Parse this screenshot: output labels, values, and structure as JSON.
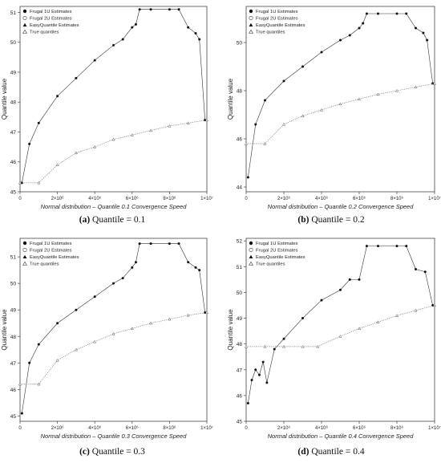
{
  "legend_entries": [
    "Frugal 1U Estimates",
    "Frugal 2U Estimates",
    "EasyQuantile Estimates",
    "True quantiles"
  ],
  "x_tick_labels": [
    "0",
    "2×10⁶",
    "4×10⁶",
    "6×10⁶",
    "8×10⁶",
    "1×10⁷"
  ],
  "captions": [
    {
      "label": "(a)",
      "text": " Quantile = 0.1"
    },
    {
      "label": "(b)",
      "text": " Quantile = 0.2"
    },
    {
      "label": "(c)",
      "text": " Quantile = 0.3"
    },
    {
      "label": "(d)",
      "text": " Quantile = 0.4"
    }
  ],
  "chart_data": [
    {
      "type": "scatter",
      "xlabel": "Normal distribution – Quantile 0.1 Convergence Speed",
      "ylabel": "Quantile value",
      "xlim": [
        0,
        10000000
      ],
      "ylim": [
        45,
        51.2
      ],
      "yticks": [
        45,
        46,
        47,
        48,
        49,
        50,
        51
      ],
      "legend_position": "top-left",
      "series": [
        {
          "name": "EasyQuantile Estimates",
          "x": [
            100000,
            500000,
            1000000,
            2000000,
            3000000,
            4000000,
            5000000,
            5500000,
            6000000,
            6200000,
            6400000,
            7000000,
            8000000,
            8500000,
            9000000,
            9400000,
            9600000,
            9900000
          ],
          "y": [
            45.3,
            46.6,
            47.3,
            48.2,
            48.8,
            49.4,
            49.9,
            50.1,
            50.5,
            50.6,
            51.1,
            51.1,
            51.1,
            51.1,
            50.5,
            50.3,
            50.1,
            47.4
          ]
        },
        {
          "name": "True quantiles",
          "x": [
            0,
            1000000,
            2000000,
            3000000,
            4000000,
            5000000,
            6000000,
            7000000,
            8000000,
            9000000,
            10000000
          ],
          "y": [
            45.3,
            45.3,
            45.9,
            46.3,
            46.5,
            46.75,
            46.9,
            47.05,
            47.2,
            47.3,
            47.4
          ]
        }
      ]
    },
    {
      "type": "scatter",
      "xlabel": "Normal distribution – Quantile 0.2 Convergence Speed",
      "ylabel": "Quantile value",
      "xlim": [
        0,
        10000000
      ],
      "ylim": [
        43.8,
        51.5
      ],
      "yticks": [
        44,
        46,
        48,
        50
      ],
      "legend_position": "top-left",
      "series": [
        {
          "name": "EasyQuantile Estimates",
          "x": [
            100000,
            500000,
            1000000,
            2000000,
            3000000,
            4000000,
            5000000,
            5500000,
            6000000,
            6200000,
            6400000,
            7000000,
            8000000,
            8500000,
            9000000,
            9400000,
            9600000,
            9900000
          ],
          "y": [
            44.4,
            46.6,
            47.6,
            48.4,
            49.0,
            49.6,
            50.1,
            50.3,
            50.6,
            50.8,
            51.2,
            51.2,
            51.2,
            51.2,
            50.6,
            50.4,
            50.1,
            48.3
          ]
        },
        {
          "name": "True quantiles",
          "x": [
            0,
            1000000,
            2000000,
            3000000,
            4000000,
            5000000,
            6000000,
            7000000,
            8000000,
            9000000,
            10000000
          ],
          "y": [
            45.8,
            45.8,
            46.6,
            46.95,
            47.2,
            47.45,
            47.65,
            47.85,
            48.0,
            48.15,
            48.3
          ]
        }
      ]
    },
    {
      "type": "scatter",
      "xlabel": "Normal distribution – Quantile 0.3 Convergence Speed",
      "ylabel": "Quantile value",
      "xlim": [
        0,
        10000000
      ],
      "ylim": [
        44.8,
        51.7
      ],
      "yticks": [
        45,
        46,
        47,
        48,
        49,
        50,
        51
      ],
      "legend_position": "top-left",
      "series": [
        {
          "name": "EasyQuantile Estimates",
          "x": [
            100000,
            500000,
            1000000,
            2000000,
            3000000,
            4000000,
            5000000,
            5500000,
            6000000,
            6200000,
            6400000,
            7000000,
            8000000,
            8500000,
            9000000,
            9400000,
            9600000,
            9900000
          ],
          "y": [
            45.1,
            47.0,
            47.7,
            48.5,
            49.0,
            49.5,
            50.0,
            50.2,
            50.6,
            50.8,
            51.5,
            51.5,
            51.5,
            51.5,
            50.8,
            50.6,
            50.5,
            48.9
          ]
        },
        {
          "name": "True quantiles",
          "x": [
            0,
            1000000,
            2000000,
            3000000,
            4000000,
            5000000,
            6000000,
            7000000,
            8000000,
            9000000,
            10000000
          ],
          "y": [
            46.2,
            46.2,
            47.1,
            47.5,
            47.8,
            48.1,
            48.3,
            48.5,
            48.65,
            48.8,
            48.9
          ]
        }
      ]
    },
    {
      "type": "scatter",
      "xlabel": "Normal distribution – Quantile 0.4 Convergence Speed",
      "ylabel": "Quantile value",
      "xlim": [
        0,
        10000000
      ],
      "ylim": [
        45,
        52.1
      ],
      "yticks": [
        45,
        46,
        47,
        48,
        49,
        50,
        51,
        52
      ],
      "legend_position": "top-left",
      "series": [
        {
          "name": "EasyQuantile Estimates",
          "x": [
            100000,
            300000,
            500000,
            700000,
            900000,
            1100000,
            1500000,
            2000000,
            3000000,
            4000000,
            5000000,
            5500000,
            6000000,
            6400000,
            7000000,
            8000000,
            8500000,
            9000000,
            9500000,
            9900000
          ],
          "y": [
            45.7,
            46.6,
            47.0,
            46.8,
            47.3,
            46.5,
            47.8,
            48.2,
            49.0,
            49.7,
            50.1,
            50.5,
            50.5,
            51.8,
            51.8,
            51.8,
            51.8,
            50.9,
            50.8,
            49.5
          ]
        },
        {
          "name": "True quantiles",
          "x": [
            0,
            1000000,
            2000000,
            3000000,
            3800000,
            5000000,
            6000000,
            7000000,
            8000000,
            9000000,
            10000000
          ],
          "y": [
            47.9,
            47.9,
            47.9,
            47.9,
            47.9,
            48.3,
            48.6,
            48.85,
            49.1,
            49.3,
            49.5
          ]
        }
      ]
    }
  ]
}
